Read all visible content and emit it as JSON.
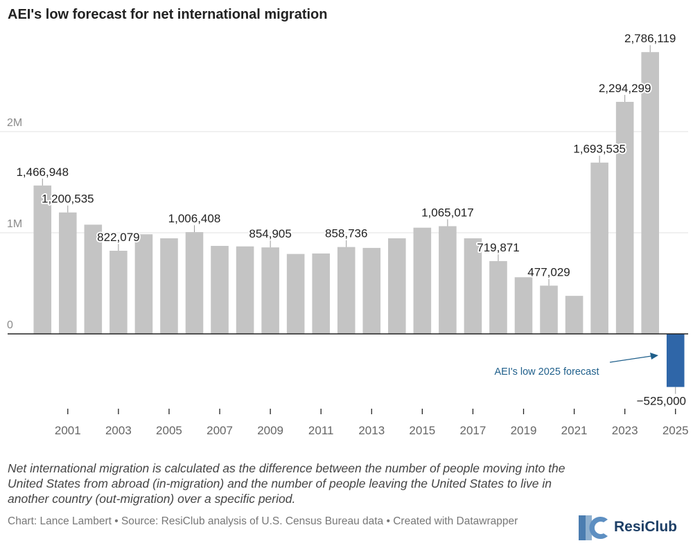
{
  "title": "AEI's low forecast for net international migration",
  "chart_data": {
    "type": "bar",
    "title": "AEI's low forecast for net international migration",
    "xlabel": "",
    "ylabel": "",
    "ylim": [
      -600000,
      2850000
    ],
    "y_ticks": [
      0,
      1000000,
      2000000
    ],
    "y_tick_labels": [
      "0",
      "1M",
      "2M"
    ],
    "x_tick_years": [
      "2001",
      "2003",
      "2005",
      "2007",
      "2009",
      "2011",
      "2013",
      "2015",
      "2017",
      "2019",
      "2021",
      "2023",
      "2025"
    ],
    "categories": [
      "2000",
      "2001",
      "2002",
      "2003",
      "2004",
      "2005",
      "2006",
      "2007",
      "2008",
      "2009",
      "2010",
      "2011",
      "2012",
      "2013",
      "2014",
      "2015",
      "2016",
      "2017",
      "2018",
      "2019",
      "2020",
      "2021",
      "2022",
      "2023",
      "2024",
      "2025"
    ],
    "values": [
      1466948,
      1200535,
      1080000,
      822079,
      985000,
      945000,
      1006408,
      870000,
      865000,
      854905,
      790000,
      795000,
      858736,
      850000,
      945000,
      1050000,
      1065017,
      945000,
      719871,
      560000,
      477029,
      376000,
      1693535,
      2294299,
      2786119,
      -525000
    ],
    "labels": [
      "1,466,948",
      "1,200,535",
      "",
      "822,079",
      "",
      "",
      "1,006,408",
      "",
      "",
      "854,905",
      "",
      "",
      "858,736",
      "",
      "",
      "",
      "1,065,017",
      "",
      "719,871",
      "",
      "477,029",
      "",
      "1,693,535",
      "2,294,299",
      "2,786,119",
      "−525,000"
    ],
    "colors": {
      "historical": "#c4c4c4",
      "forecast": "#2f66a8",
      "annotation": "#1f5f8b"
    },
    "annotation": "AEI's low 2025 forecast"
  },
  "footer": {
    "note": "Net international migration is calculated as the difference between the number of people moving into the United States from abroad (in-migration) and the number of people leaving the United States to live in another country (out-migration) over a specific period.",
    "credit": "Chart: Lance Lambert • Source: ResiClub analysis of U.S. Census Bureau data • Created with Datawrapper",
    "logo_text": "ResiClub"
  }
}
